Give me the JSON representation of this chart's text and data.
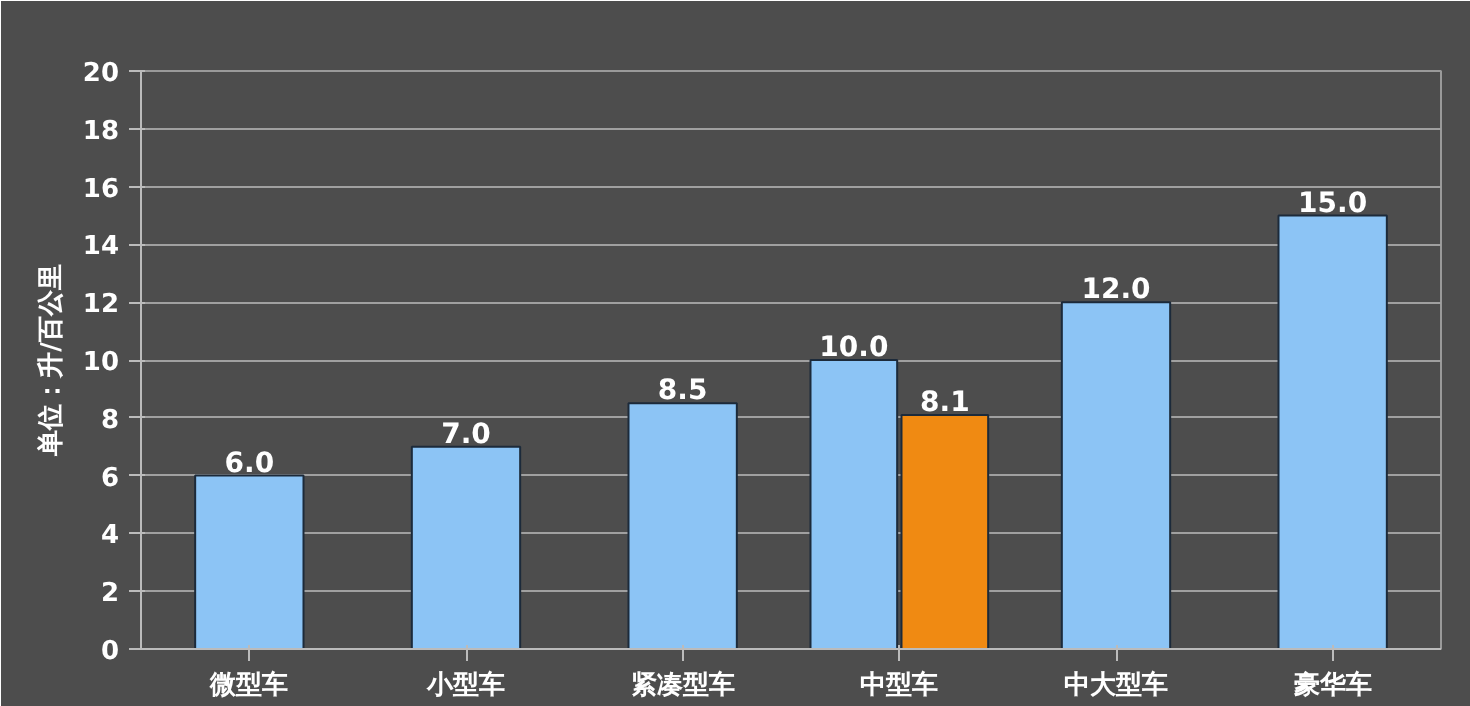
{
  "chart_data": {
    "type": "bar",
    "ylabel": "单位：升/百公里",
    "categories": [
      "微型车",
      "小型车",
      "紧凑型车",
      "中型车",
      "中大型车",
      "豪华车"
    ],
    "series": [
      {
        "color": "#8cc4f5",
        "values": [
          6.0,
          7.0,
          8.5,
          10.0,
          12.0,
          15.0
        ],
        "value_labels": [
          "6.0",
          "7.0",
          "8.5",
          "10.0",
          "12.0",
          "15.0"
        ]
      },
      {
        "color": "#f08a12",
        "values": [
          null,
          null,
          null,
          8.1,
          null,
          null
        ],
        "value_labels": [
          null,
          null,
          null,
          "8.1",
          null,
          null
        ]
      }
    ],
    "ylim": [
      0,
      20
    ],
    "yticks": [
      0,
      2,
      4,
      6,
      8,
      10,
      12,
      14,
      16,
      18,
      20
    ],
    "grid": "y"
  }
}
